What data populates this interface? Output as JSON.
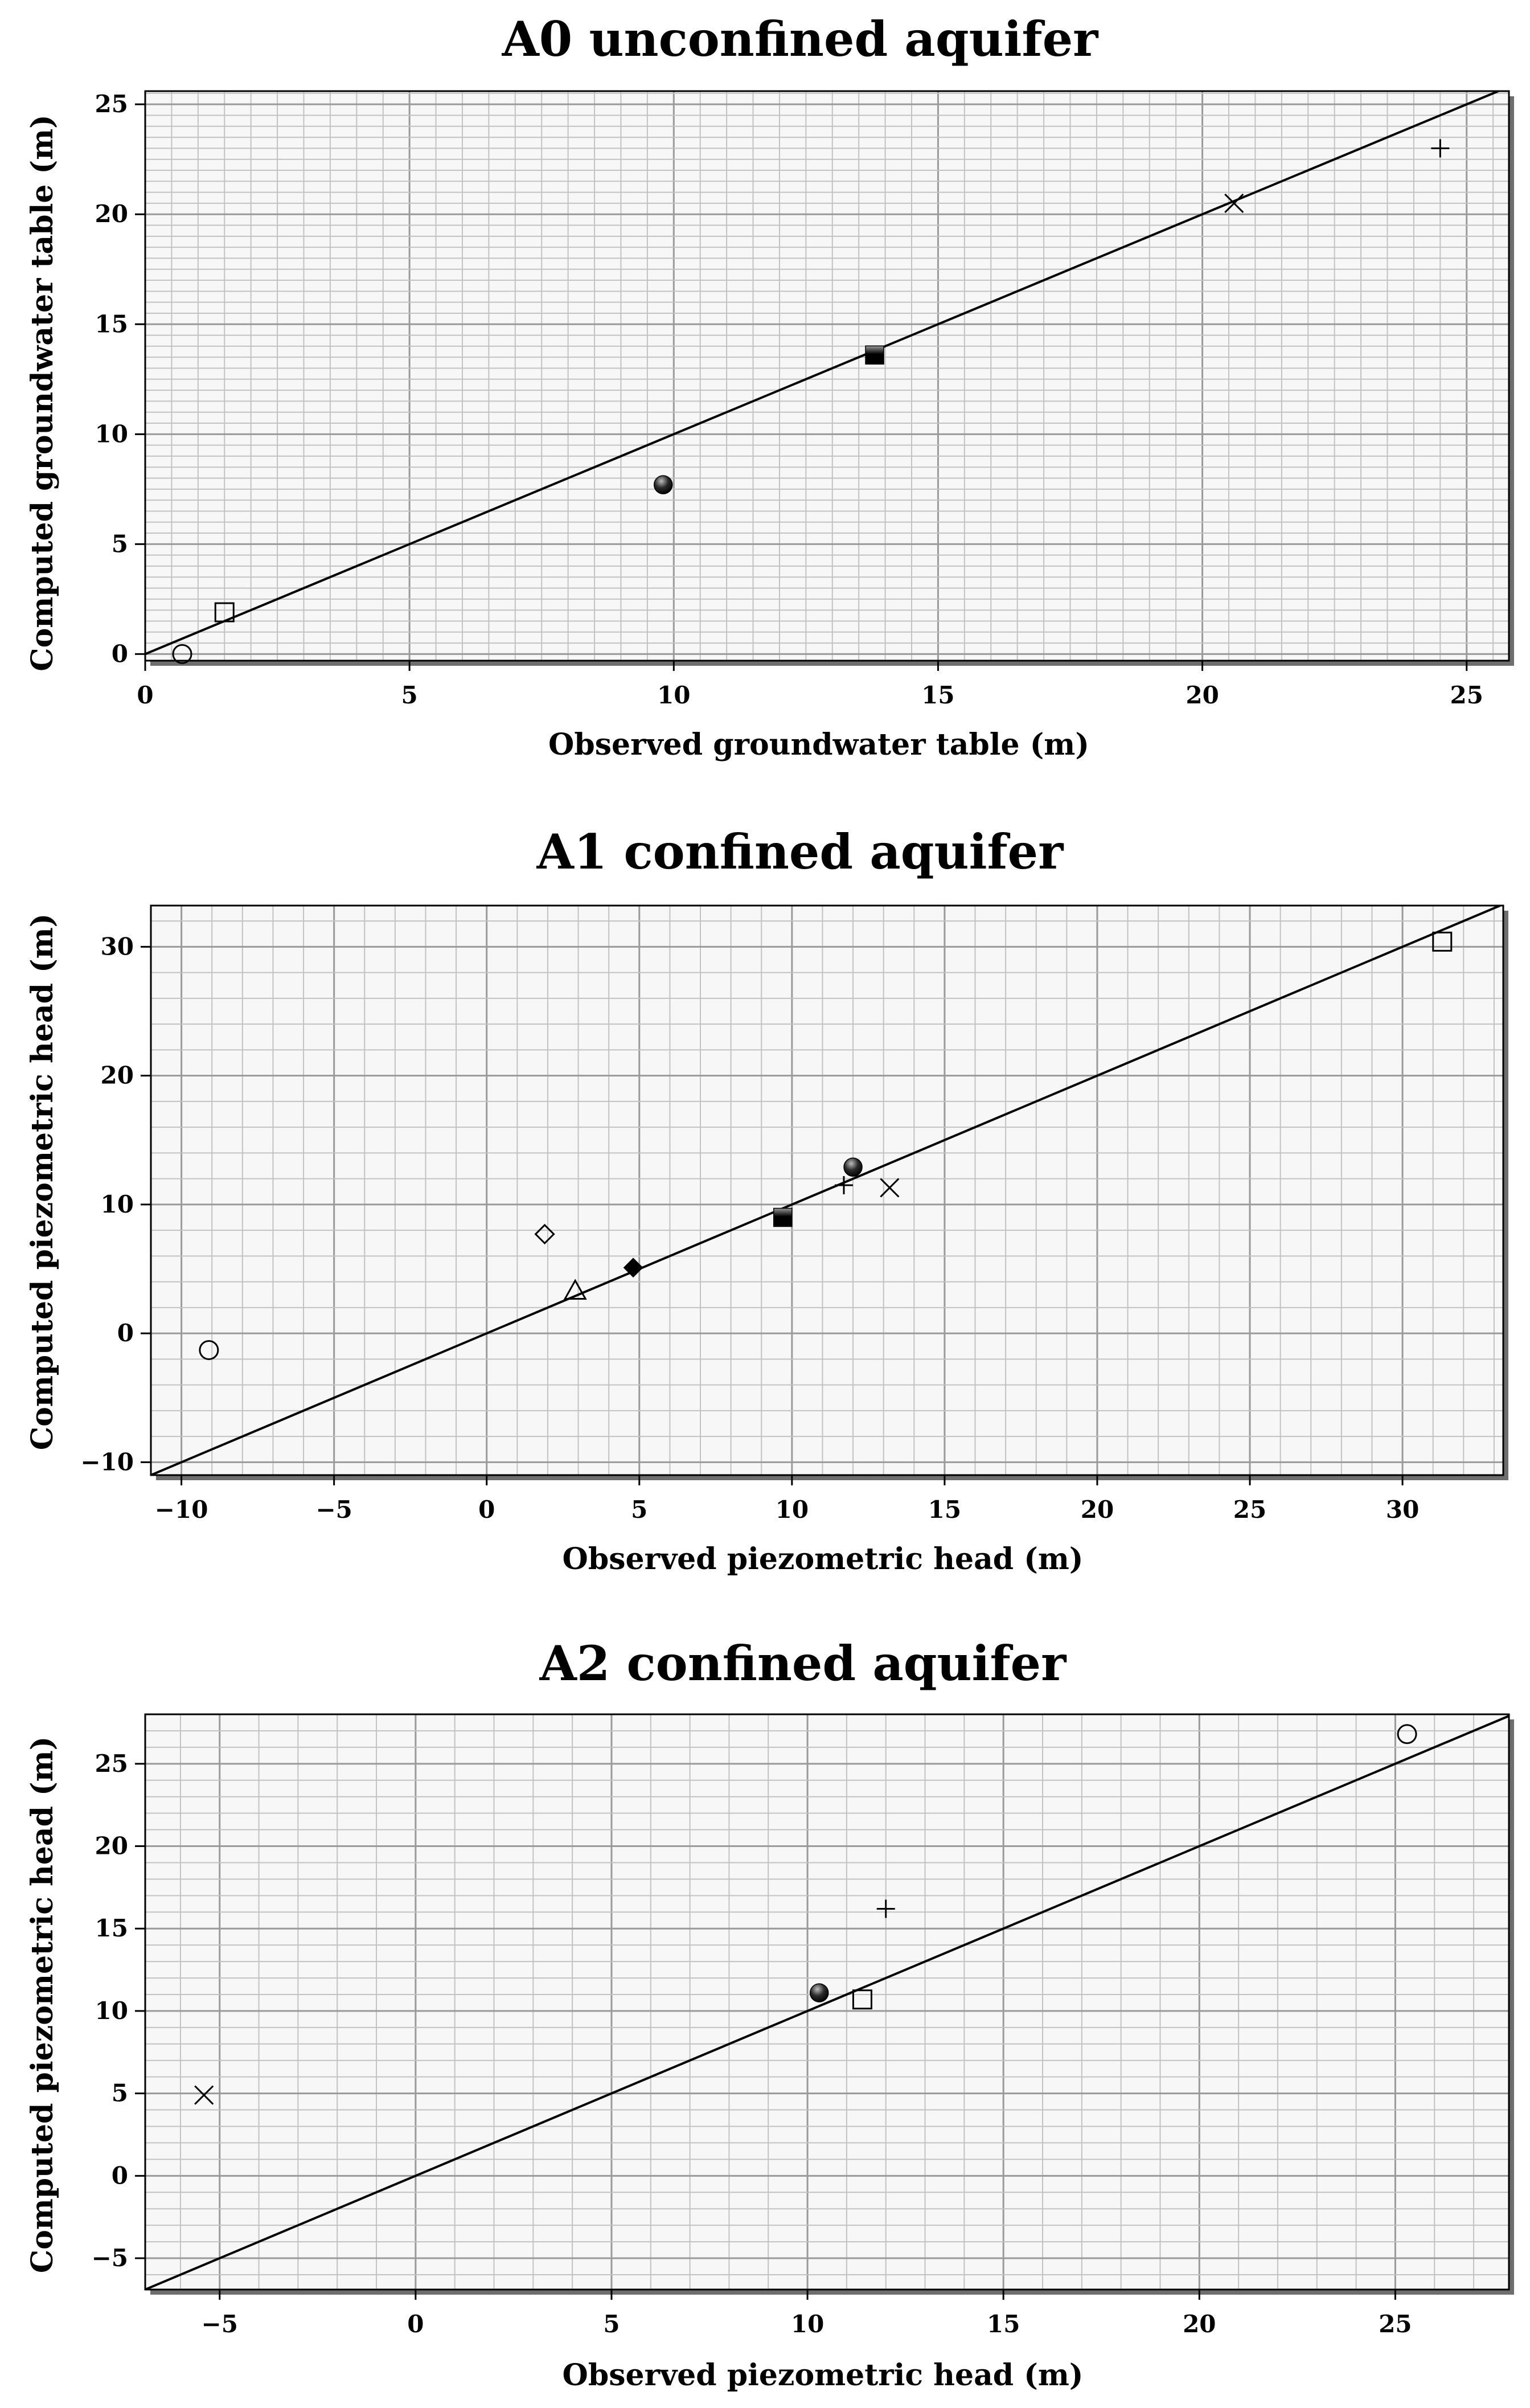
{
  "chart_data": [
    {
      "type": "scatter",
      "title": "A0 unconfined aquifer",
      "xlabel": "Observed groundwater table (m)",
      "ylabel": "Computed groundwater table (m)",
      "xlim": [
        0,
        25.8
      ],
      "ylim": [
        -0.3,
        25.6
      ],
      "xticks": [
        0,
        5,
        10,
        15,
        20,
        25
      ],
      "yticks": [
        0,
        5,
        10,
        15,
        20,
        25
      ],
      "grid": true,
      "reference_line": "y = x",
      "points": [
        {
          "x": 0.7,
          "y": 0.0,
          "marker": "circle-open"
        },
        {
          "x": 1.5,
          "y": 1.9,
          "marker": "square-open"
        },
        {
          "x": 9.8,
          "y": 7.7,
          "marker": "circle-filled"
        },
        {
          "x": 13.8,
          "y": 13.6,
          "marker": "square-filled"
        },
        {
          "x": 20.6,
          "y": 20.5,
          "marker": "x"
        },
        {
          "x": 24.5,
          "y": 23.0,
          "marker": "plus"
        }
      ]
    },
    {
      "type": "scatter",
      "title": "A1 confined aquifer",
      "xlabel": "Observed piezometric head (m)",
      "ylabel": "Computed piezometric head (m)",
      "xlim": [
        -11,
        33.3
      ],
      "ylim": [
        -11,
        33.2
      ],
      "xticks": [
        -10,
        -5,
        0,
        5,
        10,
        15,
        20,
        25,
        30
      ],
      "yticks": [
        -10,
        0,
        10,
        20,
        30
      ],
      "grid": true,
      "reference_line": "y = x",
      "points": [
        {
          "x": -9.1,
          "y": -1.3,
          "marker": "circle-open"
        },
        {
          "x": 1.9,
          "y": 7.7,
          "marker": "diamond-open"
        },
        {
          "x": 2.9,
          "y": 3.3,
          "marker": "triangle-open"
        },
        {
          "x": 4.8,
          "y": 5.1,
          "marker": "diamond-filled"
        },
        {
          "x": 9.7,
          "y": 9.0,
          "marker": "square-filled"
        },
        {
          "x": 11.7,
          "y": 11.5,
          "marker": "plus"
        },
        {
          "x": 12.0,
          "y": 12.9,
          "marker": "circle-filled"
        },
        {
          "x": 13.2,
          "y": 11.3,
          "marker": "x"
        },
        {
          "x": 31.3,
          "y": 30.4,
          "marker": "square-open"
        }
      ]
    },
    {
      "type": "scatter",
      "title": "A2 confined aquifer",
      "xlabel": "Observed piezometric head (m)",
      "ylabel": "Computed piezometric head (m)",
      "xlim": [
        -6.9,
        27.9
      ],
      "ylim": [
        -6.9,
        28.0
      ],
      "xticks": [
        -5,
        0,
        5,
        10,
        15,
        20,
        25
      ],
      "yticks": [
        -5,
        0,
        5,
        10,
        15,
        20,
        25
      ],
      "grid": true,
      "reference_line": "y = x",
      "points": [
        {
          "x": -5.4,
          "y": 4.9,
          "marker": "x"
        },
        {
          "x": 10.3,
          "y": 11.1,
          "marker": "circle-filled"
        },
        {
          "x": 11.4,
          "y": 10.7,
          "marker": "square-open"
        },
        {
          "x": 12.0,
          "y": 16.2,
          "marker": "plus"
        },
        {
          "x": 25.3,
          "y": 26.8,
          "marker": "circle-open"
        }
      ]
    }
  ]
}
